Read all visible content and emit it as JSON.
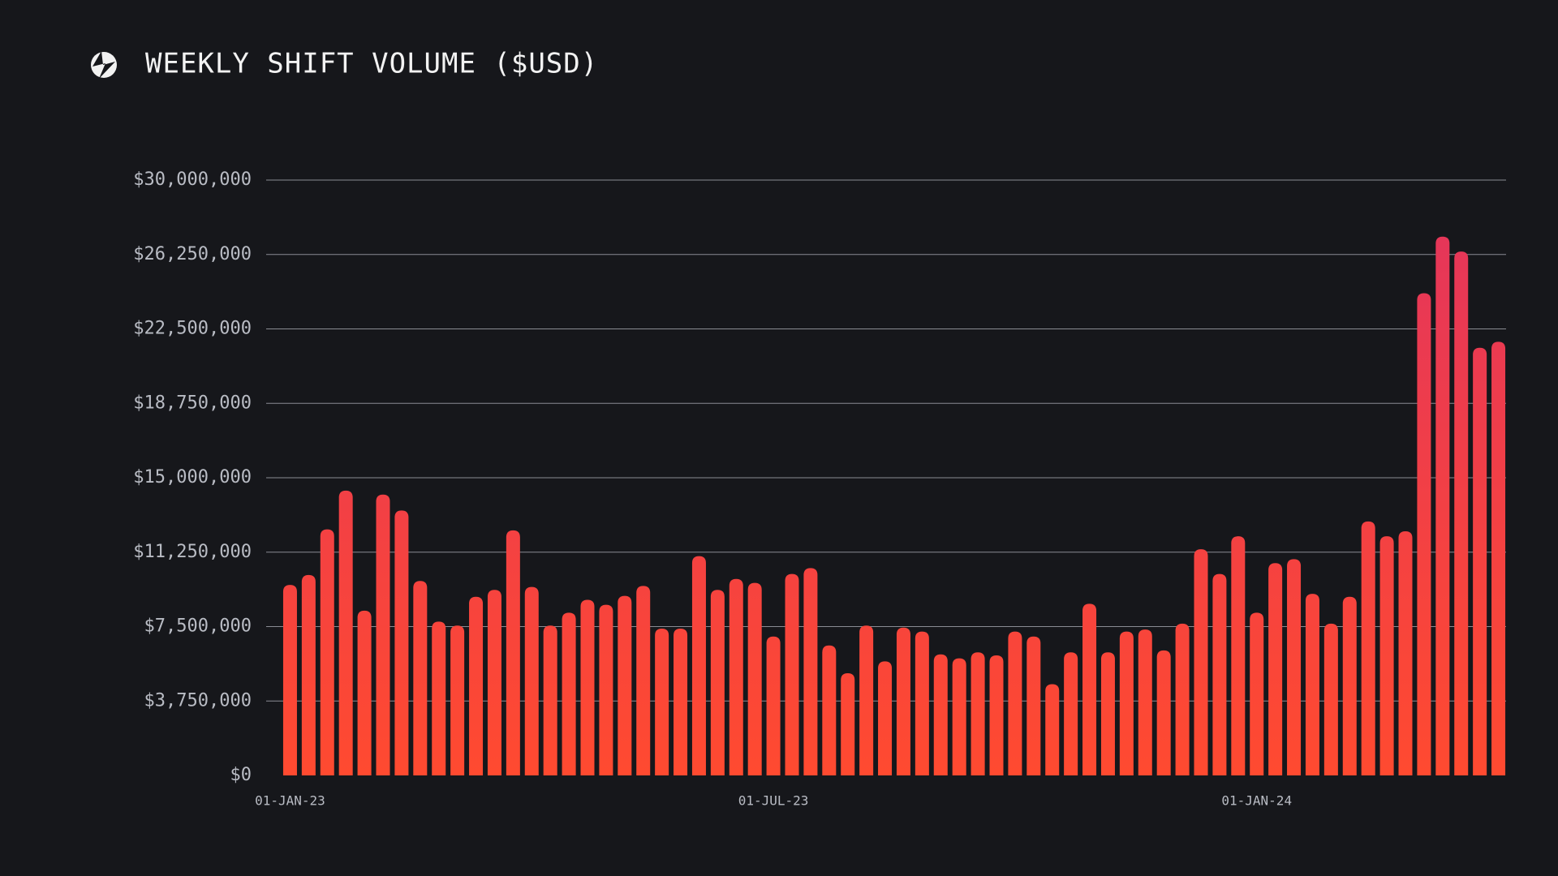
{
  "chart_data": {
    "type": "bar",
    "title": "WEEKLY SHIFT VOLUME ($USD)",
    "categories": [
      "01-JAN-23",
      null,
      null,
      null,
      null,
      null,
      null,
      null,
      null,
      null,
      null,
      null,
      null,
      null,
      null,
      null,
      null,
      null,
      null,
      null,
      null,
      null,
      null,
      null,
      null,
      null,
      "01-JUL-23",
      null,
      null,
      null,
      null,
      null,
      null,
      null,
      null,
      null,
      null,
      null,
      null,
      null,
      null,
      null,
      null,
      null,
      null,
      null,
      null,
      null,
      null,
      null,
      null,
      null,
      "01-JAN-24",
      null,
      null,
      null,
      null,
      null,
      null,
      null,
      null,
      null,
      null,
      null,
      null,
      null
    ],
    "values": [
      9600000,
      10100000,
      12400000,
      14350000,
      8300000,
      14150000,
      13350000,
      9800000,
      7750000,
      7550000,
      9000000,
      9350000,
      12350000,
      9500000,
      7550000,
      8200000,
      8850000,
      8600000,
      9050000,
      9550000,
      7400000,
      7400000,
      11050000,
      9350000,
      9900000,
      9700000,
      7000000,
      10150000,
      10450000,
      6550000,
      5150000,
      7550000,
      5750000,
      7450000,
      7250000,
      6100000,
      5900000,
      6200000,
      6050000,
      7250000,
      7000000,
      4600000,
      6200000,
      8650000,
      6200000,
      7250000,
      7350000,
      6300000,
      7650000,
      11400000,
      10150000,
      12050000,
      8200000,
      10700000,
      10900000,
      9150000,
      7650000,
      9000000,
      12800000,
      12050000,
      12300000,
      24300000,
      27150000,
      26400000,
      21550000,
      21850000
    ],
    "gradient": [
      "#e3345d",
      "#ff4a30"
    ],
    "ylim": [
      0,
      30000000
    ],
    "yticks": [
      {
        "value": 0,
        "label": "$0"
      },
      {
        "value": 3750000,
        "label": "$3,750,000"
      },
      {
        "value": 7500000,
        "label": "$7,500,000"
      },
      {
        "value": 11250000,
        "label": "$11,250,000"
      },
      {
        "value": 15000000,
        "label": "$15,000,000"
      },
      {
        "value": 18750000,
        "label": "$18,750,000"
      },
      {
        "value": 22500000,
        "label": "$22,500,000"
      },
      {
        "value": 26250000,
        "label": "$26,250,000"
      },
      {
        "value": 30000000,
        "label": "$30,000,000"
      }
    ],
    "grid": true
  }
}
